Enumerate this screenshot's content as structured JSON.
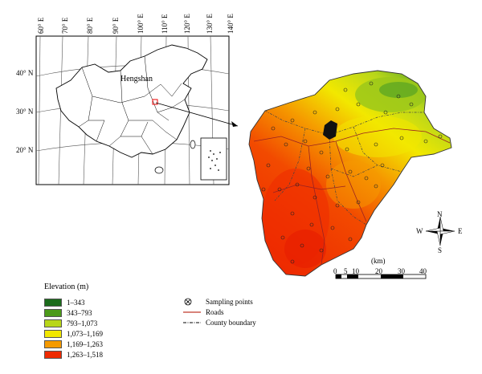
{
  "inset_map": {
    "place_label": "Hengshan",
    "longitude_labels": [
      "60° E",
      "70° E",
      "80° E",
      "90° E",
      "100° E",
      "110° E",
      "120° E",
      "130° E",
      "140° E"
    ],
    "latitude_labels": [
      "40° N",
      "30° N",
      "20° N"
    ]
  },
  "legend": {
    "title": "Elevation (m)",
    "classes": [
      {
        "label": "1–343",
        "color": "#1b6b1b"
      },
      {
        "label": "343–793",
        "color": "#4c9a1a"
      },
      {
        "label": "793–1,073",
        "color": "#b8d61a"
      },
      {
        "label": "1,073–1,169",
        "color": "#f2e800"
      },
      {
        "label": "1,169–1,263",
        "color": "#f59a00"
      },
      {
        "label": "1,263–1,518",
        "color": "#ee2a00"
      }
    ],
    "symbols": [
      {
        "label": "Sampling points",
        "icon": "sampling-point-icon"
      },
      {
        "label": "Roads",
        "icon": "road-line-icon",
        "color": "#c0392b"
      },
      {
        "label": "County boundary",
        "icon": "county-boundary-icon"
      }
    ]
  },
  "scale_bar": {
    "unit": "(km)",
    "ticks": [
      "0",
      "5",
      "10",
      "20",
      "30",
      "40"
    ]
  },
  "north_arrow": {
    "n": "N",
    "s": "S",
    "e": "E",
    "w": "W"
  }
}
